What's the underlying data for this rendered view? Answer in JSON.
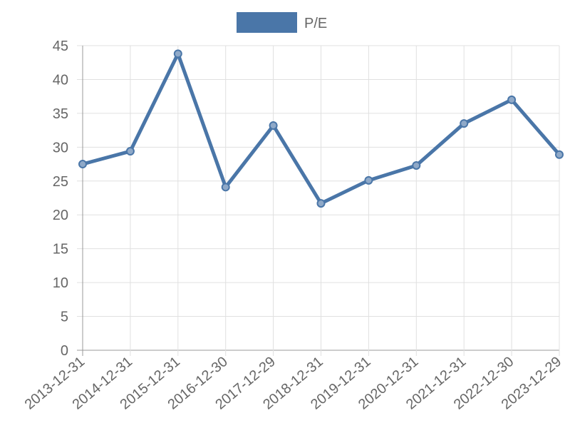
{
  "chart_data": {
    "type": "line",
    "categories": [
      "2013-12-31",
      "2014-12-31",
      "2015-12-31",
      "2016-12-30",
      "2017-12-29",
      "2018-12-31",
      "2019-12-31",
      "2020-12-31",
      "2021-12-31",
      "2022-12-30",
      "2023-12-29"
    ],
    "series": [
      {
        "name": "P/E",
        "color": "#4a76a8",
        "values": [
          27.5,
          29.4,
          43.8,
          24.1,
          33.2,
          21.7,
          25.1,
          27.3,
          33.5,
          37.0,
          28.9
        ]
      }
    ],
    "ylim": [
      0,
      45
    ],
    "yticks": [
      0,
      5,
      10,
      15,
      20,
      25,
      30,
      35,
      40,
      45
    ],
    "grid": true,
    "legend": "top"
  }
}
